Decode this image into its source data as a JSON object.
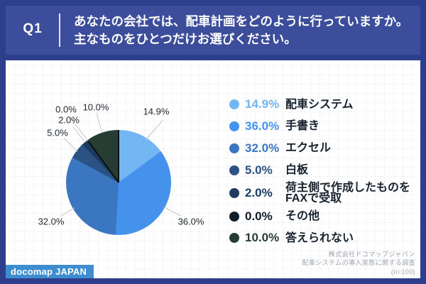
{
  "colors": {
    "frame_border": "#2C3E8C",
    "header_band": "#3C4E9B",
    "card": "#FFFFFF",
    "logo_bg": "#3E8DD0",
    "separator_line": "#0A0F12"
  },
  "header": {
    "badge": "Q1",
    "question_line1": "あなたの会社では、配車計画をどのように行っていますか。",
    "question_line2": "主なものをひとつだけお選びください。"
  },
  "chart_data": {
    "type": "pie",
    "title": "",
    "start_angle_deg": 0,
    "direction": "clockwise",
    "slices": [
      {
        "label": "配車システム",
        "value": 14.9,
        "pct_label": "14.9%",
        "color": "#73B6F3"
      },
      {
        "label": "手書き",
        "value": 36.0,
        "pct_label": "36.0%",
        "color": "#4592EC"
      },
      {
        "label": "エクセル",
        "value": 32.0,
        "pct_label": "32.0%",
        "color": "#3B76C0"
      },
      {
        "label": "白板",
        "value": 5.0,
        "pct_label": "5.0%",
        "color": "#2B5283"
      },
      {
        "label": "荷主側で作成したものをFAXで受取",
        "value": 2.0,
        "pct_label": "2.0%",
        "color": "#1D3B61"
      },
      {
        "label": "その他",
        "value": 0.0,
        "pct_label": "0.0%",
        "color": "#101E29"
      },
      {
        "label": "答えられない",
        "value": 10.0,
        "pct_label": "10.0%",
        "color": "#263D33"
      }
    ]
  },
  "legend": {
    "items": [
      {
        "pct": "14.9%",
        "label": "配車システム",
        "label_line2": "",
        "color": "#73B6F3"
      },
      {
        "pct": "36.0%",
        "label": "手書き",
        "label_line2": "",
        "color": "#4592EC"
      },
      {
        "pct": "32.0%",
        "label": "エクセル",
        "label_line2": "",
        "color": "#3B76C0"
      },
      {
        "pct": "5.0%",
        "label": "白板",
        "label_line2": "",
        "color": "#2B5283"
      },
      {
        "pct": "2.0%",
        "label": "荷主側で作成したものを",
        "label_line2": "FAXで受取",
        "color": "#1D3B61"
      },
      {
        "pct": "0.0%",
        "label": "その他",
        "label_line2": "",
        "color": "#101E29"
      },
      {
        "pct": "10.0%",
        "label": "答えられない",
        "label_line2": "",
        "color": "#263D33"
      }
    ]
  },
  "footer": {
    "logo": "docomap JAPAN",
    "credit_line1": "株式会社ドコマップジャパン",
    "credit_line2": "配車システムの導入実態に関する調査",
    "credit_line3": "(n=100)"
  }
}
